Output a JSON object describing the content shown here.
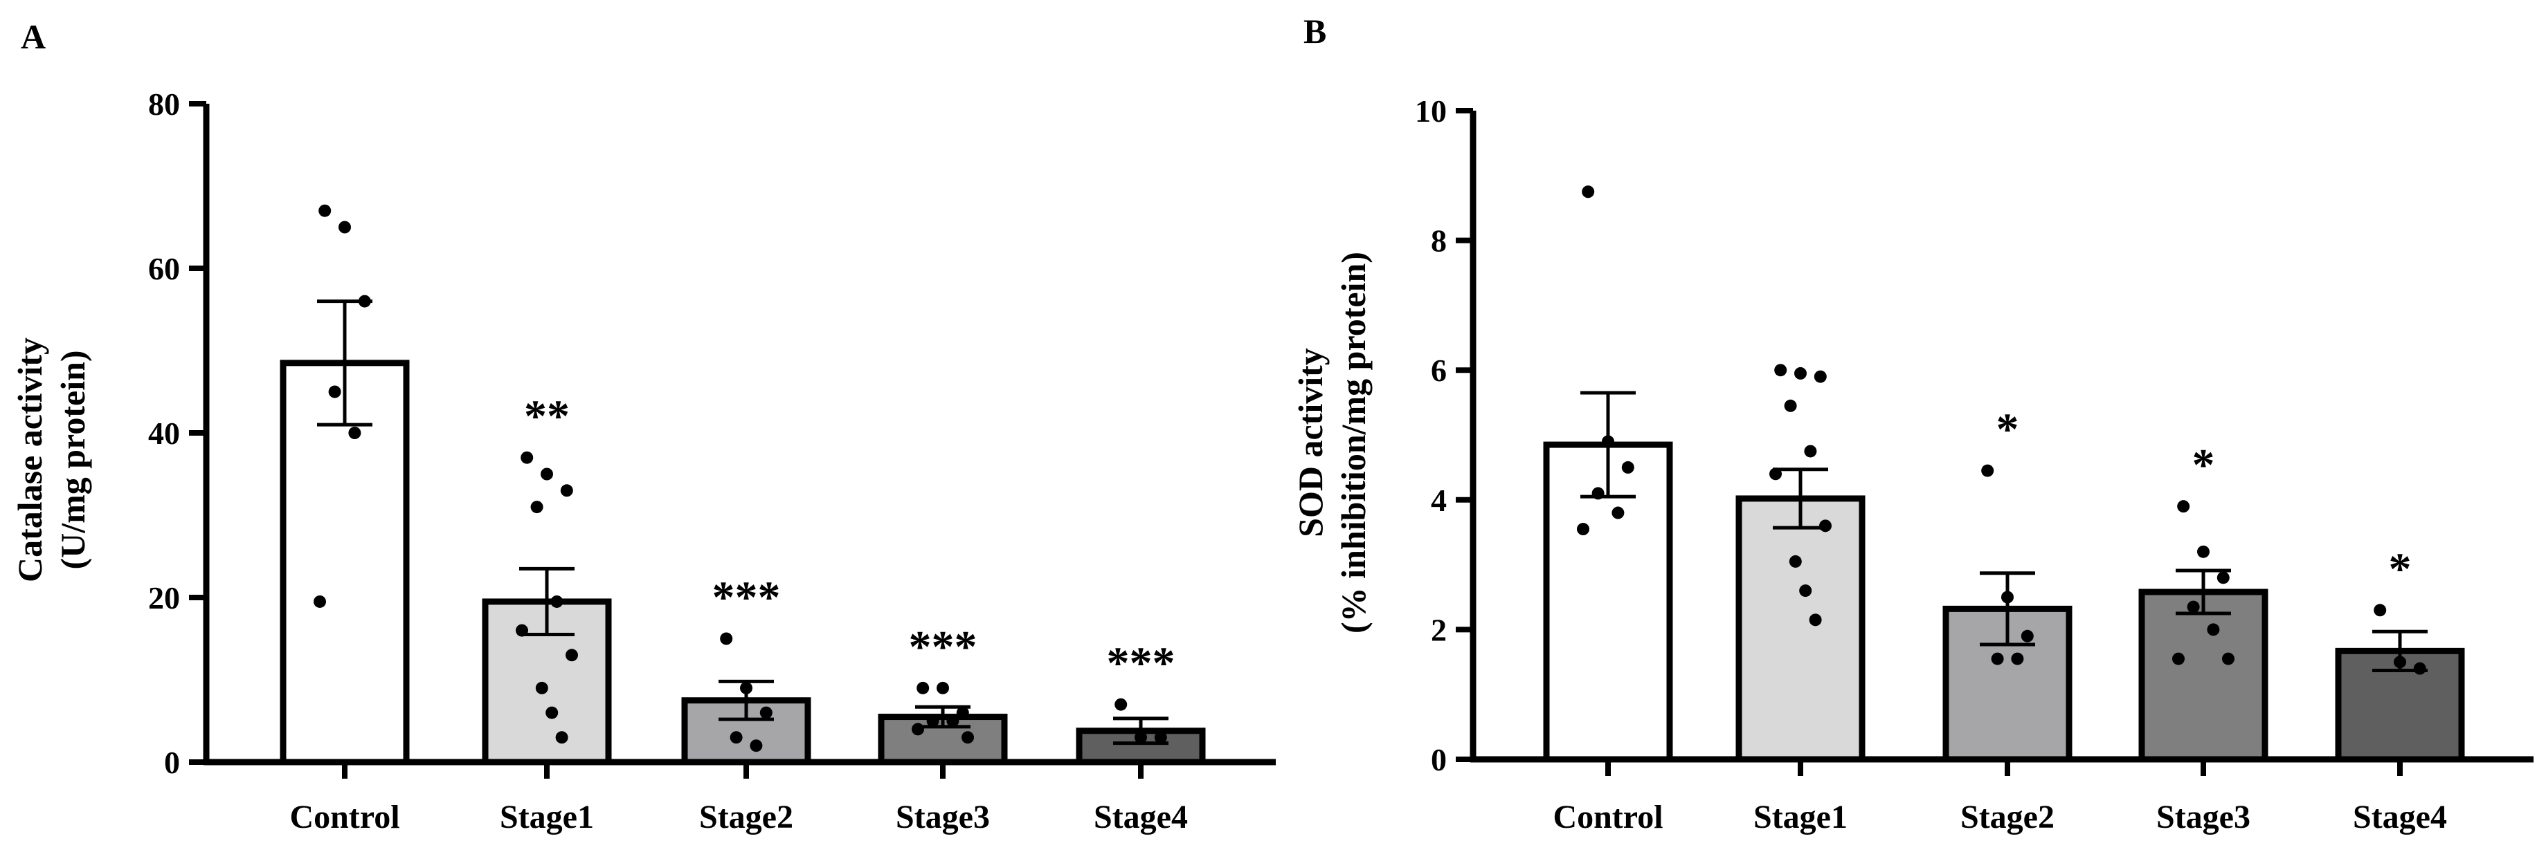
{
  "chart_data": [
    {
      "panel_label": "A",
      "type": "bar",
      "ylabel_line1": "Catalase activity",
      "ylabel_line2": "(U/mg protein)",
      "ylim": [
        0,
        80
      ],
      "yticks": [
        0,
        20,
        40,
        60,
        80
      ],
      "categories": [
        "Control",
        "Stage1",
        "Stage2",
        "Stage3",
        "Stage4"
      ],
      "values": [
        48.5,
        19.5,
        7.5,
        5.5,
        3.8
      ],
      "sem": [
        7.5,
        4.0,
        2.3,
        1.2,
        1.5
      ],
      "significance": [
        "",
        "**",
        "***",
        "***",
        "***"
      ],
      "bar_colors": [
        "#ffffff",
        "#d9d9d9",
        "#a6a6a8",
        "#7f7f7f",
        "#5f5f5f"
      ],
      "points": [
        [
          67.0,
          65.0,
          56.0,
          45.0,
          40.0,
          19.5
        ],
        [
          37.0,
          35.0,
          33.0,
          31.0,
          19.5,
          16.0,
          13.0,
          9.0,
          6.0,
          3.0
        ],
        [
          15.0,
          9.0,
          6.0,
          3.0,
          2.0
        ],
        [
          9.0,
          9.0,
          6.0,
          5.0,
          5.0,
          4.0,
          3.0
        ],
        [
          7.0,
          3.0,
          3.0
        ]
      ]
    },
    {
      "panel_label": "B",
      "type": "bar",
      "ylabel_line1": "SOD activity",
      "ylabel_line2": "(% inhibition/mg protein)",
      "ylim": [
        0,
        10
      ],
      "yticks": [
        0,
        2,
        4,
        6,
        8,
        10
      ],
      "categories": [
        "Control",
        "Stage1",
        "Stage2",
        "Stage3",
        "Stage4"
      ],
      "values": [
        4.85,
        4.02,
        2.32,
        2.58,
        1.67
      ],
      "sem": [
        0.8,
        0.45,
        0.55,
        0.33,
        0.3
      ],
      "significance": [
        "",
        "",
        "*",
        "*",
        "*"
      ],
      "bar_colors": [
        "#ffffff",
        "#d9d9d9",
        "#a6a6a8",
        "#7f7f7f",
        "#5f5f5f"
      ],
      "points": [
        [
          8.75,
          4.9,
          4.5,
          4.1,
          3.8,
          3.55
        ],
        [
          6.0,
          5.95,
          5.9,
          5.45,
          4.75,
          4.4,
          3.6,
          3.05,
          2.6,
          2.15
        ],
        [
          4.45,
          2.5,
          1.9,
          1.55,
          1.55
        ],
        [
          3.9,
          3.2,
          2.8,
          2.35,
          2.0,
          1.55,
          1.55
        ],
        [
          2.3,
          1.5,
          1.4
        ]
      ]
    }
  ]
}
